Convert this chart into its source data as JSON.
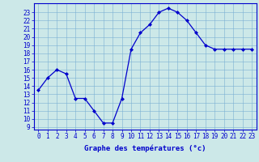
{
  "hours": [
    0,
    1,
    2,
    3,
    4,
    5,
    6,
    7,
    8,
    9,
    10,
    11,
    12,
    13,
    14,
    15,
    16,
    17,
    18,
    19,
    20,
    21,
    22,
    23
  ],
  "temps": [
    13.5,
    15.0,
    16.0,
    15.5,
    12.5,
    12.5,
    11.0,
    9.5,
    9.5,
    12.5,
    18.5,
    20.5,
    21.5,
    23.0,
    23.5,
    23.0,
    22.0,
    20.5,
    19.0,
    18.5,
    18.5,
    18.5,
    18.5,
    18.5
  ],
  "line_color": "#0000cc",
  "marker": "D",
  "marker_size": 2.0,
  "bg_color": "#cce8e8",
  "grid_color": "#7ab0d4",
  "ylabel_ticks": [
    9,
    10,
    11,
    12,
    13,
    14,
    15,
    16,
    17,
    18,
    19,
    20,
    21,
    22,
    23
  ],
  "ylim": [
    8.7,
    24.1
  ],
  "xlim": [
    -0.5,
    23.5
  ],
  "xlabel": "Graphe des températures (°c)",
  "axis_color": "#0000cc",
  "tick_color": "#0000cc",
  "tick_fontsize": 5.5,
  "label_fontsize": 6.5
}
